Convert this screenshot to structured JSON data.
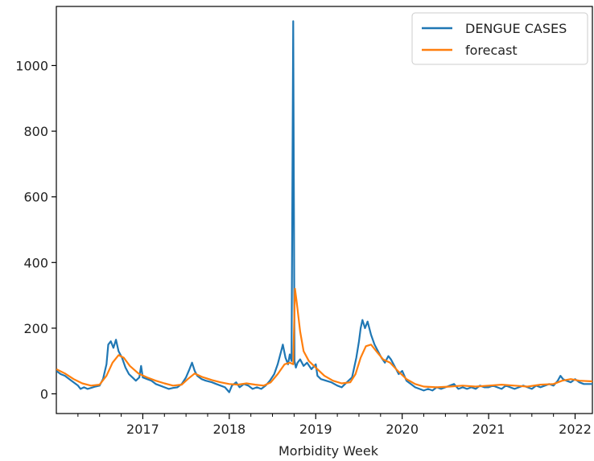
{
  "chart_data": {
    "type": "line",
    "title": "",
    "xlabel": "Morbidity Week",
    "ylabel": "",
    "x_range": [
      2016.0,
      2022.2
    ],
    "ylim": [
      -60,
      1180
    ],
    "x_ticks": [
      {
        "value": 2017,
        "label": "2017"
      },
      {
        "value": 2018,
        "label": "2018"
      },
      {
        "value": 2019,
        "label": "2019"
      },
      {
        "value": 2020,
        "label": "2020"
      },
      {
        "value": 2021,
        "label": "2021"
      },
      {
        "value": 2022,
        "label": "2022"
      }
    ],
    "y_ticks": [
      {
        "value": 0,
        "label": "0"
      },
      {
        "value": 200,
        "label": "200"
      },
      {
        "value": 400,
        "label": "400"
      },
      {
        "value": 600,
        "label": "600"
      },
      {
        "value": 800,
        "label": "800"
      },
      {
        "value": 1000,
        "label": "1000"
      }
    ],
    "grid": false,
    "legend_position": "top-right",
    "series": [
      {
        "name": "DENGUE CASES",
        "color": "#1f77b4",
        "points": [
          [
            2016.0,
            70
          ],
          [
            2016.05,
            60
          ],
          [
            2016.1,
            55
          ],
          [
            2016.15,
            45
          ],
          [
            2016.2,
            35
          ],
          [
            2016.25,
            25
          ],
          [
            2016.28,
            15
          ],
          [
            2016.32,
            20
          ],
          [
            2016.36,
            15
          ],
          [
            2016.4,
            18
          ],
          [
            2016.45,
            22
          ],
          [
            2016.5,
            25
          ],
          [
            2016.54,
            45
          ],
          [
            2016.58,
            90
          ],
          [
            2016.6,
            150
          ],
          [
            2016.63,
            160
          ],
          [
            2016.66,
            140
          ],
          [
            2016.69,
            165
          ],
          [
            2016.72,
            130
          ],
          [
            2016.76,
            110
          ],
          [
            2016.8,
            80
          ],
          [
            2016.84,
            60
          ],
          [
            2016.88,
            50
          ],
          [
            2016.92,
            40
          ],
          [
            2016.96,
            50
          ],
          [
            2016.98,
            85
          ],
          [
            2017.0,
            50
          ],
          [
            2017.05,
            45
          ],
          [
            2017.1,
            40
          ],
          [
            2017.15,
            30
          ],
          [
            2017.2,
            25
          ],
          [
            2017.25,
            20
          ],
          [
            2017.3,
            15
          ],
          [
            2017.35,
            18
          ],
          [
            2017.4,
            20
          ],
          [
            2017.45,
            30
          ],
          [
            2017.5,
            50
          ],
          [
            2017.54,
            75
          ],
          [
            2017.57,
            95
          ],
          [
            2017.6,
            70
          ],
          [
            2017.63,
            55
          ],
          [
            2017.68,
            45
          ],
          [
            2017.73,
            40
          ],
          [
            2017.8,
            35
          ],
          [
            2017.85,
            30
          ],
          [
            2017.9,
            25
          ],
          [
            2017.95,
            20
          ],
          [
            2018.0,
            5
          ],
          [
            2018.03,
            25
          ],
          [
            2018.08,
            35
          ],
          [
            2018.12,
            20
          ],
          [
            2018.17,
            30
          ],
          [
            2018.22,
            25
          ],
          [
            2018.27,
            15
          ],
          [
            2018.32,
            20
          ],
          [
            2018.37,
            15
          ],
          [
            2018.42,
            25
          ],
          [
            2018.47,
            40
          ],
          [
            2018.52,
            60
          ],
          [
            2018.56,
            90
          ],
          [
            2018.6,
            130
          ],
          [
            2018.62,
            150
          ],
          [
            2018.65,
            110
          ],
          [
            2018.68,
            90
          ],
          [
            2018.7,
            120
          ],
          [
            2018.72,
            100
          ],
          [
            2018.74,
            1135
          ],
          [
            2018.755,
            100
          ],
          [
            2018.77,
            80
          ],
          [
            2018.79,
            95
          ],
          [
            2018.82,
            105
          ],
          [
            2018.86,
            85
          ],
          [
            2018.9,
            95
          ],
          [
            2018.95,
            75
          ],
          [
            2019.0,
            90
          ],
          [
            2019.02,
            55
          ],
          [
            2019.06,
            45
          ],
          [
            2019.12,
            40
          ],
          [
            2019.18,
            35
          ],
          [
            2019.25,
            25
          ],
          [
            2019.3,
            20
          ],
          [
            2019.36,
            35
          ],
          [
            2019.42,
            50
          ],
          [
            2019.47,
            110
          ],
          [
            2019.5,
            160
          ],
          [
            2019.52,
            200
          ],
          [
            2019.54,
            225
          ],
          [
            2019.57,
            200
          ],
          [
            2019.6,
            220
          ],
          [
            2019.64,
            180
          ],
          [
            2019.68,
            150
          ],
          [
            2019.72,
            130
          ],
          [
            2019.76,
            110
          ],
          [
            2019.8,
            95
          ],
          [
            2019.84,
            115
          ],
          [
            2019.87,
            105
          ],
          [
            2019.92,
            80
          ],
          [
            2019.96,
            60
          ],
          [
            2020.0,
            70
          ],
          [
            2020.05,
            40
          ],
          [
            2020.1,
            30
          ],
          [
            2020.15,
            20
          ],
          [
            2020.2,
            15
          ],
          [
            2020.25,
            10
          ],
          [
            2020.3,
            15
          ],
          [
            2020.35,
            10
          ],
          [
            2020.4,
            20
          ],
          [
            2020.45,
            15
          ],
          [
            2020.5,
            20
          ],
          [
            2020.55,
            25
          ],
          [
            2020.6,
            30
          ],
          [
            2020.65,
            15
          ],
          [
            2020.7,
            20
          ],
          [
            2020.75,
            15
          ],
          [
            2020.8,
            20
          ],
          [
            2020.85,
            15
          ],
          [
            2020.9,
            25
          ],
          [
            2020.95,
            20
          ],
          [
            2021.0,
            20
          ],
          [
            2021.05,
            25
          ],
          [
            2021.1,
            20
          ],
          [
            2021.15,
            15
          ],
          [
            2021.2,
            25
          ],
          [
            2021.25,
            20
          ],
          [
            2021.3,
            15
          ],
          [
            2021.35,
            20
          ],
          [
            2021.4,
            25
          ],
          [
            2021.45,
            20
          ],
          [
            2021.5,
            15
          ],
          [
            2021.55,
            25
          ],
          [
            2021.6,
            20
          ],
          [
            2021.65,
            25
          ],
          [
            2021.7,
            30
          ],
          [
            2021.75,
            25
          ],
          [
            2021.8,
            40
          ],
          [
            2021.83,
            55
          ],
          [
            2021.86,
            45
          ],
          [
            2021.9,
            40
          ],
          [
            2021.95,
            35
          ],
          [
            2022.0,
            45
          ],
          [
            2022.05,
            35
          ],
          [
            2022.1,
            30
          ],
          [
            2022.15,
            30
          ],
          [
            2022.2,
            30
          ]
        ]
      },
      {
        "name": "forecast",
        "color": "#ff7f0e",
        "points": [
          [
            2016.0,
            75
          ],
          [
            2016.1,
            62
          ],
          [
            2016.2,
            45
          ],
          [
            2016.3,
            32
          ],
          [
            2016.4,
            25
          ],
          [
            2016.5,
            28
          ],
          [
            2016.58,
            55
          ],
          [
            2016.65,
            95
          ],
          [
            2016.72,
            118
          ],
          [
            2016.78,
            110
          ],
          [
            2016.85,
            85
          ],
          [
            2016.95,
            62
          ],
          [
            2017.05,
            50
          ],
          [
            2017.15,
            40
          ],
          [
            2017.25,
            32
          ],
          [
            2017.35,
            25
          ],
          [
            2017.45,
            28
          ],
          [
            2017.52,
            45
          ],
          [
            2017.6,
            62
          ],
          [
            2017.68,
            52
          ],
          [
            2017.8,
            42
          ],
          [
            2017.9,
            35
          ],
          [
            2018.0,
            30
          ],
          [
            2018.1,
            28
          ],
          [
            2018.2,
            32
          ],
          [
            2018.3,
            28
          ],
          [
            2018.4,
            25
          ],
          [
            2018.48,
            35
          ],
          [
            2018.56,
            60
          ],
          [
            2018.64,
            90
          ],
          [
            2018.7,
            95
          ],
          [
            2018.74,
            90
          ],
          [
            2018.76,
            320
          ],
          [
            2018.78,
            280
          ],
          [
            2018.82,
            190
          ],
          [
            2018.86,
            130
          ],
          [
            2018.92,
            100
          ],
          [
            2019.0,
            80
          ],
          [
            2019.1,
            55
          ],
          [
            2019.2,
            40
          ],
          [
            2019.3,
            32
          ],
          [
            2019.4,
            35
          ],
          [
            2019.46,
            60
          ],
          [
            2019.52,
            110
          ],
          [
            2019.58,
            145
          ],
          [
            2019.64,
            150
          ],
          [
            2019.7,
            130
          ],
          [
            2019.78,
            105
          ],
          [
            2019.86,
            95
          ],
          [
            2019.95,
            70
          ],
          [
            2020.05,
            45
          ],
          [
            2020.15,
            30
          ],
          [
            2020.25,
            22
          ],
          [
            2020.4,
            20
          ],
          [
            2020.55,
            22
          ],
          [
            2020.7,
            25
          ],
          [
            2020.85,
            22
          ],
          [
            2021.0,
            25
          ],
          [
            2021.15,
            28
          ],
          [
            2021.3,
            25
          ],
          [
            2021.45,
            22
          ],
          [
            2021.6,
            28
          ],
          [
            2021.75,
            30
          ],
          [
            2021.85,
            40
          ],
          [
            2021.95,
            45
          ],
          [
            2022.05,
            40
          ],
          [
            2022.2,
            38
          ]
        ]
      }
    ]
  }
}
